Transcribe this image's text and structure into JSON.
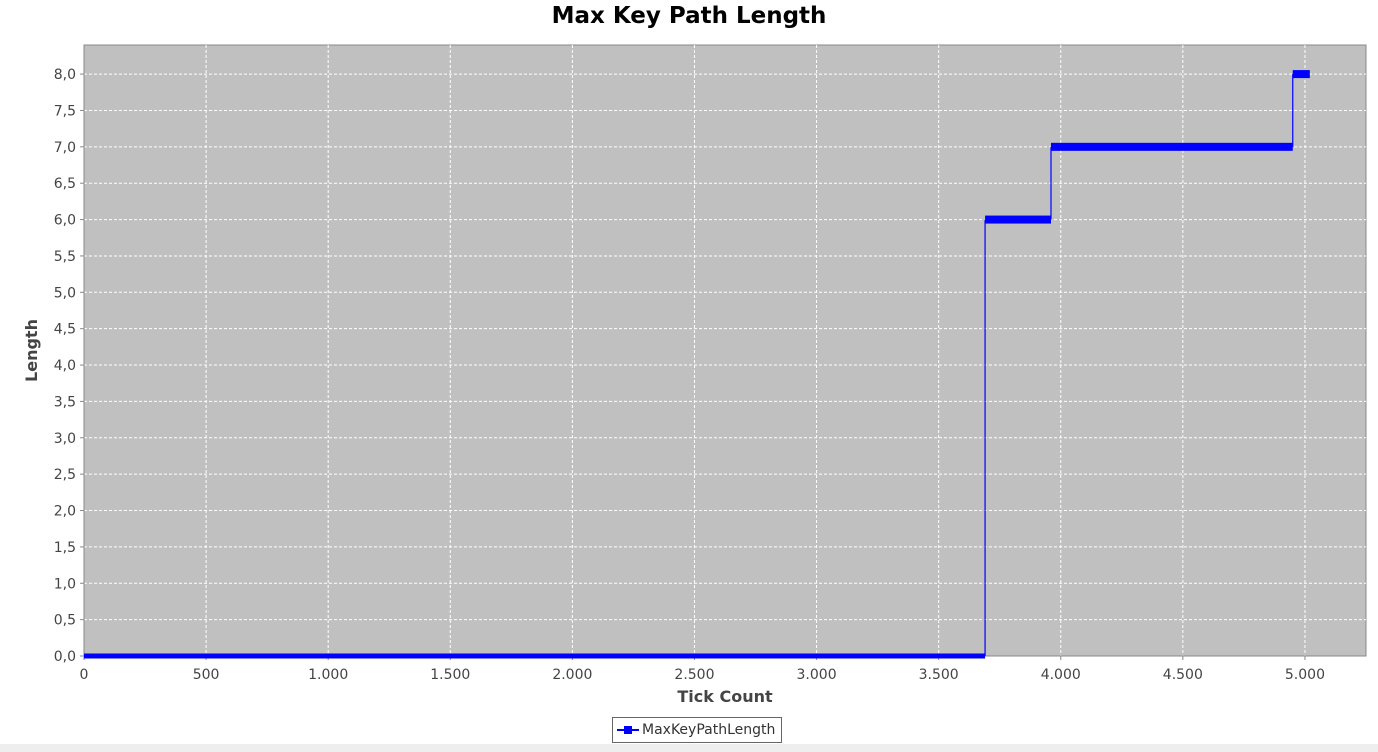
{
  "chart_data": {
    "type": "line",
    "title": "Max Key Path Length",
    "xlabel": "Tick Count",
    "ylabel": "Length",
    "xlim": [
      0,
      5250
    ],
    "ylim": [
      0,
      8.4
    ],
    "xticks": [
      0,
      500,
      1000,
      1500,
      2000,
      2500,
      3000,
      3500,
      4000,
      4500,
      5000
    ],
    "xtick_labels": [
      "0",
      "500",
      "1.000",
      "1.500",
      "2.000",
      "2.500",
      "3.000",
      "3.500",
      "4.000",
      "4.500",
      "5.000"
    ],
    "yticks": [
      0,
      0.5,
      1,
      1.5,
      2,
      2.5,
      3,
      3.5,
      4,
      4.5,
      5,
      5.5,
      6,
      6.5,
      7,
      7.5,
      8
    ],
    "ytick_labels": [
      "0,0",
      "0,5",
      "1,0",
      "1,5",
      "2,0",
      "2,5",
      "3,0",
      "3,5",
      "4,0",
      "4,5",
      "5,0",
      "5,5",
      "6,0",
      "6,5",
      "7,0",
      "7,5",
      "8,0"
    ],
    "grid": true,
    "legend_position": "bottom-center",
    "series": [
      {
        "name": "MaxKeyPathLength",
        "color": "#0000ff",
        "segments": [
          {
            "x_start": 0,
            "x_end": 3690,
            "y": 0
          },
          {
            "x_start": 3690,
            "x_end": 3960,
            "y": 6
          },
          {
            "x_start": 3960,
            "x_end": 4950,
            "y": 7
          },
          {
            "x_start": 4950,
            "x_end": 5020,
            "y": 8
          }
        ]
      }
    ]
  }
}
